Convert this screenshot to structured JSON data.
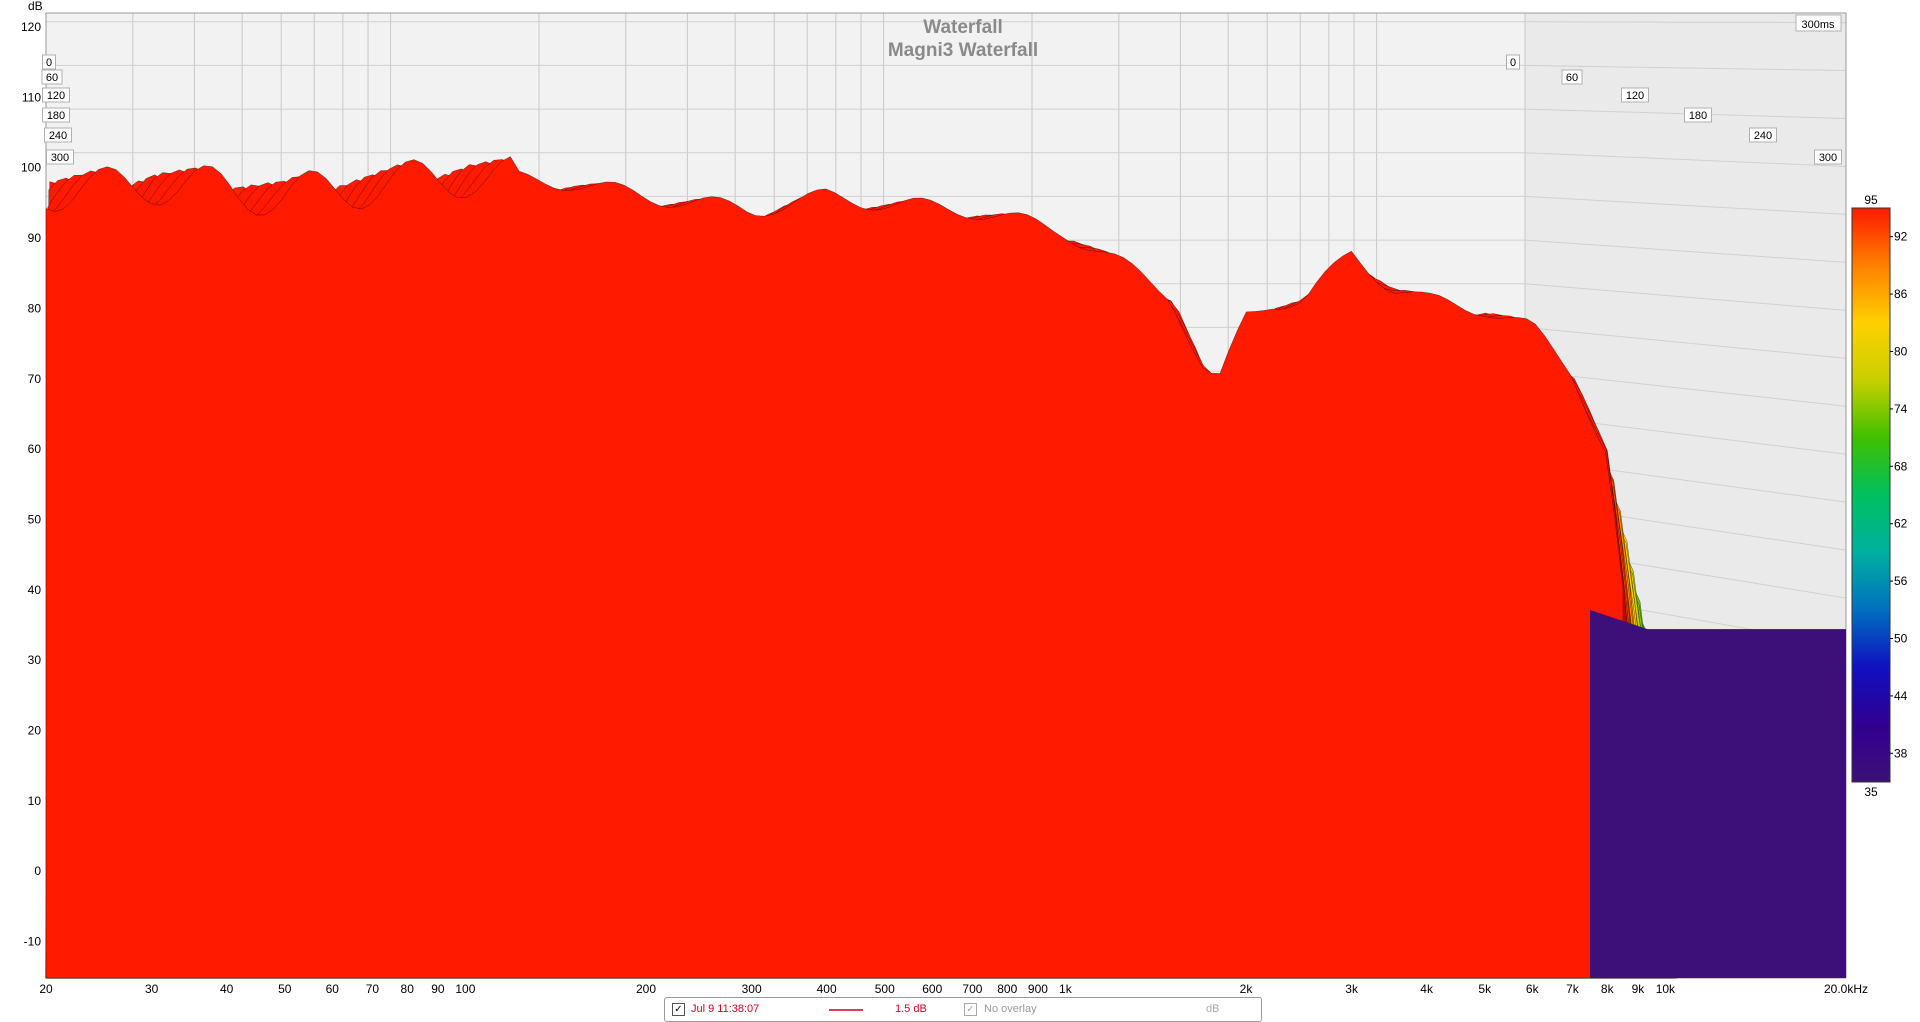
{
  "chart_data": {
    "type": "waterfall",
    "title": "Waterfall",
    "subtitle": "Magni3 Waterfall",
    "ylabel": "dB",
    "ylim": [
      -15,
      122
    ],
    "y_ticks": [
      120,
      110,
      100,
      90,
      80,
      70,
      60,
      50,
      40,
      30,
      20,
      10,
      0,
      -10
    ],
    "x_scale": "log",
    "xlim": [
      20,
      20000
    ],
    "x_ticks": [
      {
        "value": 20,
        "label": "20"
      },
      {
        "value": 30,
        "label": "30"
      },
      {
        "value": 40,
        "label": "40"
      },
      {
        "value": 50,
        "label": "50"
      },
      {
        "value": 60,
        "label": "60"
      },
      {
        "value": 70,
        "label": "70"
      },
      {
        "value": 80,
        "label": "80"
      },
      {
        "value": 90,
        "label": "90"
      },
      {
        "value": 100,
        "label": "100"
      },
      {
        "value": 200,
        "label": "200"
      },
      {
        "value": 300,
        "label": "300"
      },
      {
        "value": 400,
        "label": "400"
      },
      {
        "value": 500,
        "label": "500"
      },
      {
        "value": 600,
        "label": "600"
      },
      {
        "value": 700,
        "label": "700"
      },
      {
        "value": 800,
        "label": "800"
      },
      {
        "value": 900,
        "label": "900"
      },
      {
        "value": 1000,
        "label": "1k"
      },
      {
        "value": 2000,
        "label": "2k"
      },
      {
        "value": 3000,
        "label": "3k"
      },
      {
        "value": 4000,
        "label": "4k"
      },
      {
        "value": 5000,
        "label": "5k"
      },
      {
        "value": 6000,
        "label": "6k"
      },
      {
        "value": 7000,
        "label": "7k"
      },
      {
        "value": 8000,
        "label": "8k"
      },
      {
        "value": 9000,
        "label": "9k"
      },
      {
        "value": 10000,
        "label": "10k"
      },
      {
        "value": 20000,
        "label": "20.0kHz"
      }
    ],
    "time_axis_label": "300ms",
    "time_ticks_right": [
      "0",
      "60",
      "120",
      "180",
      "240",
      "300"
    ],
    "time_ticks_left": [
      "0",
      "60",
      "120",
      "180",
      "240",
      "300"
    ],
    "colorbar": {
      "range": [
        35,
        95
      ],
      "ticks": [
        "95",
        "92",
        "86",
        "80",
        "74",
        "68",
        "62",
        "56",
        "50",
        "44",
        "38",
        "35"
      ],
      "colors": [
        "#ff1a00",
        "#ff8000",
        "#ffd000",
        "#c8d000",
        "#40c000",
        "#00c060",
        "#00b0a0",
        "#0070c0",
        "#1010c0",
        "#300090",
        "#3c1078"
      ]
    },
    "front_slice": {
      "freq": [
        20,
        25,
        30,
        40,
        50,
        60,
        80,
        100,
        150,
        200,
        250,
        300,
        400,
        500,
        700,
        1000,
        1500,
        1700,
        1800,
        2000,
        2200,
        2500,
        3000,
        3500,
        4000,
        5000,
        6000,
        7000,
        8000,
        8500
      ],
      "db": [
        98,
        98,
        99,
        98,
        97,
        98,
        99,
        100,
        99,
        97,
        96,
        95,
        97,
        96,
        95,
        92,
        83,
        72,
        70,
        80,
        82,
        82,
        89,
        84,
        82,
        81,
        78,
        72,
        60,
        40
      ]
    },
    "floor_db": 5,
    "slices": 60
  },
  "legend": {
    "measurement": "Jul 9 11:38:07",
    "smoothing": "1.5 dB",
    "overlay": "No overlay",
    "unit": "dB",
    "line_color": "#d00020"
  }
}
